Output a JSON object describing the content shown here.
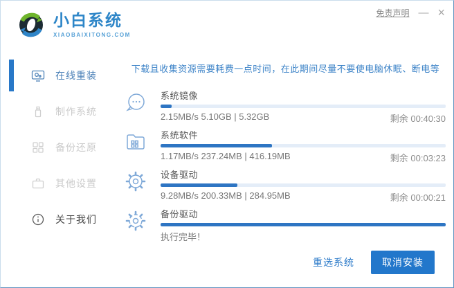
{
  "window": {
    "disclaimer_link": "免责声明",
    "minimize_glyph": "—",
    "close_glyph": "×"
  },
  "brand": {
    "name": "小白系统",
    "domain": "XIAOBAIXITONG.COM"
  },
  "sidebar": {
    "items": [
      {
        "label": "在线重装",
        "icon": "monitor-icon",
        "active": true
      },
      {
        "label": "制作系统",
        "icon": "usb-drive-icon",
        "active": false
      },
      {
        "label": "备份还原",
        "icon": "backup-grid-icon",
        "active": false
      },
      {
        "label": "其他设置",
        "icon": "briefcase-icon",
        "active": false
      },
      {
        "label": "关于我们",
        "icon": "info-icon",
        "active": false
      }
    ]
  },
  "main": {
    "notice": "下载且收集资源需要耗费一点时间，在此期间尽量不要使电脑休眠、断电等",
    "tasks": [
      {
        "name": "系统镜像",
        "icon": "chat-bubble-icon",
        "progress_percent": 4,
        "stats": "2.15MB/s 5.10GB | 5.32GB",
        "remaining": "剩余 00:40:30"
      },
      {
        "name": "系统软件",
        "icon": "folder-grid-icon",
        "progress_percent": 39,
        "stats": "1.17MB/s 237.24MB | 416.19MB",
        "remaining": "剩余 00:03:23"
      },
      {
        "name": "设备驱动",
        "icon": "gear-icon",
        "progress_percent": 27,
        "stats": "9.28MB/s 200.33MB | 284.95MB",
        "remaining": "剩余 00:00:21"
      },
      {
        "name": "备份驱动",
        "icon": "gear-sync-icon",
        "progress_percent": 100,
        "stats": "执行完毕！",
        "remaining": ""
      }
    ],
    "buttons": {
      "reselect": "重选系统",
      "cancel": "取消安装"
    }
  },
  "colors": {
    "accent_blue": "#2878c8",
    "progress_fill": "#2e75c3",
    "progress_track": "#e4edf8",
    "notice_text": "#3e84c8",
    "brand_blue": "#2e86c8",
    "sidebar_inactive": "#cbcbcb",
    "logo_green": "#6fb52c",
    "logo_dark": "#1c2b33"
  }
}
